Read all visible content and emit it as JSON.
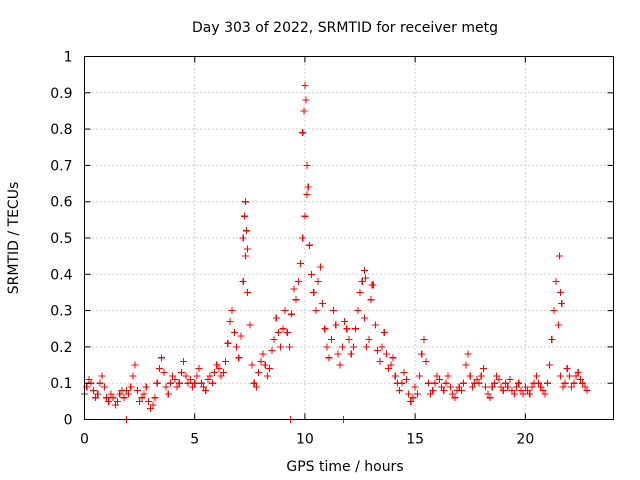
{
  "chart_data": {
    "type": "scatter",
    "title": "Day 303 of 2022, SRMTID for receiver metg",
    "xlabel": "GPS time / hours",
    "ylabel": "SRMTID / TECUs",
    "xlim": [
      0,
      24
    ],
    "ylim": [
      0,
      1
    ],
    "xticks": [
      0,
      5,
      10,
      15,
      20
    ],
    "xtick_labels": [
      "0",
      "5",
      "10",
      "15",
      "20"
    ],
    "yticks": [
      0,
      0.1,
      0.2,
      0.3,
      0.4,
      0.5,
      0.6,
      0.7,
      0.8,
      0.9,
      1
    ],
    "ytick_labels": [
      "0",
      "0.1",
      "0.2",
      "0.3",
      "0.4",
      "0.5",
      "0.6",
      "0.7",
      "0.8",
      "0.9",
      "1"
    ],
    "grid": true,
    "marker": "+",
    "color": "#ff0000",
    "series": [
      {
        "name": "SRMTID",
        "x": [
          0.0,
          0.1,
          0.2,
          0.3,
          0.4,
          0.5,
          0.6,
          0.7,
          0.8,
          0.9,
          1.0,
          1.1,
          1.2,
          1.3,
          1.4,
          1.5,
          1.6,
          1.7,
          1.8,
          1.9,
          2.0,
          2.1,
          2.2,
          2.3,
          2.4,
          2.5,
          2.6,
          2.7,
          2.8,
          2.9,
          3.0,
          3.1,
          3.2,
          3.3,
          3.4,
          3.5,
          3.6,
          3.7,
          3.8,
          3.9,
          4.0,
          4.1,
          4.2,
          4.3,
          4.4,
          4.5,
          4.6,
          4.7,
          4.8,
          4.9,
          5.0,
          5.1,
          5.2,
          5.3,
          5.4,
          5.5,
          5.6,
          5.7,
          5.8,
          5.9,
          6.0,
          6.1,
          6.2,
          6.3,
          6.4,
          6.5,
          6.6,
          6.7,
          6.8,
          6.9,
          7.0,
          7.1,
          7.2,
          7.3,
          7.4,
          7.5,
          7.6,
          7.7,
          7.8,
          7.9,
          8.0,
          8.1,
          8.2,
          8.3,
          8.4,
          8.5,
          8.6,
          8.7,
          8.8,
          8.9,
          9.0,
          9.1,
          9.2,
          9.3,
          9.4,
          9.5,
          9.6,
          9.7,
          9.8,
          9.9,
          10.0,
          10.1,
          10.2,
          10.3,
          10.4,
          10.5,
          10.6,
          10.7,
          10.8,
          10.9,
          11.0,
          11.1,
          11.2,
          11.3,
          11.4,
          11.5,
          11.6,
          11.7,
          11.8,
          11.9,
          12.0,
          12.1,
          12.2,
          12.3,
          12.4,
          12.5,
          12.6,
          12.7,
          12.8,
          12.9,
          13.0,
          13.1,
          13.2,
          13.3,
          13.4,
          13.5,
          13.6,
          13.7,
          13.8,
          13.9,
          14.0,
          14.1,
          14.2,
          14.3,
          14.4,
          14.5,
          14.6,
          14.7,
          14.8,
          14.9,
          15.0,
          15.1,
          15.2,
          15.3,
          15.4,
          15.5,
          15.6,
          15.7,
          15.8,
          15.9,
          16.0,
          16.1,
          16.2,
          16.3,
          16.4,
          16.5,
          16.6,
          16.7,
          16.8,
          16.9,
          17.0,
          17.1,
          17.2,
          17.3,
          17.4,
          17.5,
          17.6,
          17.7,
          17.8,
          17.9,
          18.0,
          18.1,
          18.2,
          18.3,
          18.4,
          18.5,
          18.6,
          18.7,
          18.8,
          18.9,
          19.0,
          19.1,
          19.2,
          19.3,
          19.4,
          19.5,
          19.6,
          19.7,
          19.8,
          19.9,
          20.0,
          20.1,
          20.2,
          20.3,
          20.4,
          20.5,
          20.6,
          20.7,
          20.8,
          20.9,
          21.0,
          21.1,
          21.2,
          21.3,
          21.4,
          21.5,
          21.6,
          21.7,
          21.8,
          21.9,
          22.0,
          22.1,
          22.2,
          22.3,
          22.4,
          22.5,
          22.6,
          22.7,
          22.8,
          7.2,
          7.25,
          7.3,
          7.35,
          7.4,
          9.9,
          9.95,
          10.0,
          10.05,
          10.1,
          10.15,
          12.7,
          12.75,
          13.05,
          21.55,
          21.6,
          21.65,
          1.9,
          9.35,
          11.75
        ],
        "y": [
          0.07,
          0.09,
          0.11,
          0.1,
          0.08,
          0.06,
          0.07,
          0.1,
          0.12,
          0.09,
          0.06,
          0.05,
          0.07,
          0.06,
          0.04,
          0.05,
          0.07,
          0.08,
          0.06,
          0.08,
          0.07,
          0.09,
          0.12,
          0.15,
          0.08,
          0.05,
          0.06,
          0.07,
          0.09,
          0.05,
          0.03,
          0.04,
          0.06,
          0.1,
          0.14,
          0.17,
          0.13,
          0.09,
          0.07,
          0.1,
          0.12,
          0.11,
          0.09,
          0.1,
          0.13,
          0.16,
          0.12,
          0.1,
          0.11,
          0.09,
          0.1,
          0.12,
          0.14,
          0.1,
          0.09,
          0.08,
          0.11,
          0.12,
          0.1,
          0.13,
          0.15,
          0.14,
          0.12,
          0.13,
          0.16,
          0.21,
          0.27,
          0.3,
          0.24,
          0.2,
          0.17,
          0.23,
          0.38,
          0.45,
          0.35,
          0.26,
          0.15,
          0.1,
          0.09,
          0.13,
          0.16,
          0.18,
          0.15,
          0.12,
          0.14,
          0.19,
          0.22,
          0.28,
          0.24,
          0.2,
          0.25,
          0.3,
          0.24,
          0.2,
          0.29,
          0.36,
          0.33,
          0.38,
          0.43,
          0.5,
          0.56,
          0.62,
          0.48,
          0.4,
          0.35,
          0.3,
          0.38,
          0.42,
          0.32,
          0.25,
          0.2,
          0.17,
          0.22,
          0.3,
          0.26,
          0.18,
          0.15,
          0.2,
          0.27,
          0.25,
          0.22,
          0.18,
          0.2,
          0.25,
          0.3,
          0.35,
          0.38,
          0.28,
          0.2,
          0.22,
          0.33,
          0.37,
          0.26,
          0.19,
          0.16,
          0.2,
          0.24,
          0.18,
          0.14,
          0.15,
          0.17,
          0.12,
          0.1,
          0.08,
          0.1,
          0.13,
          0.11,
          0.07,
          0.05,
          0.06,
          0.09,
          0.07,
          0.12,
          0.18,
          0.22,
          0.16,
          0.1,
          0.07,
          0.08,
          0.1,
          0.12,
          0.11,
          0.09,
          0.08,
          0.1,
          0.12,
          0.09,
          0.07,
          0.06,
          0.08,
          0.09,
          0.08,
          0.1,
          0.15,
          0.18,
          0.12,
          0.09,
          0.1,
          0.11,
          0.1,
          0.12,
          0.14,
          0.09,
          0.07,
          0.06,
          0.09,
          0.1,
          0.12,
          0.11,
          0.09,
          0.08,
          0.1,
          0.09,
          0.11,
          0.08,
          0.07,
          0.09,
          0.1,
          0.08,
          0.07,
          0.09,
          0.08,
          0.07,
          0.09,
          0.1,
          0.12,
          0.1,
          0.09,
          0.08,
          0.07,
          0.1,
          0.15,
          0.22,
          0.3,
          0.38,
          0.26,
          0.12,
          0.09,
          0.1,
          0.14,
          0.12,
          0.09,
          0.1,
          0.12,
          0.13,
          0.11,
          0.1,
          0.09,
          0.08,
          0.5,
          0.56,
          0.6,
          0.52,
          0.47,
          0.79,
          0.85,
          0.92,
          0.88,
          0.7,
          0.64,
          0.41,
          0.39,
          0.37,
          0.45,
          0.35,
          0.32,
          0.0,
          0.0,
          0.0
        ]
      }
    ]
  }
}
